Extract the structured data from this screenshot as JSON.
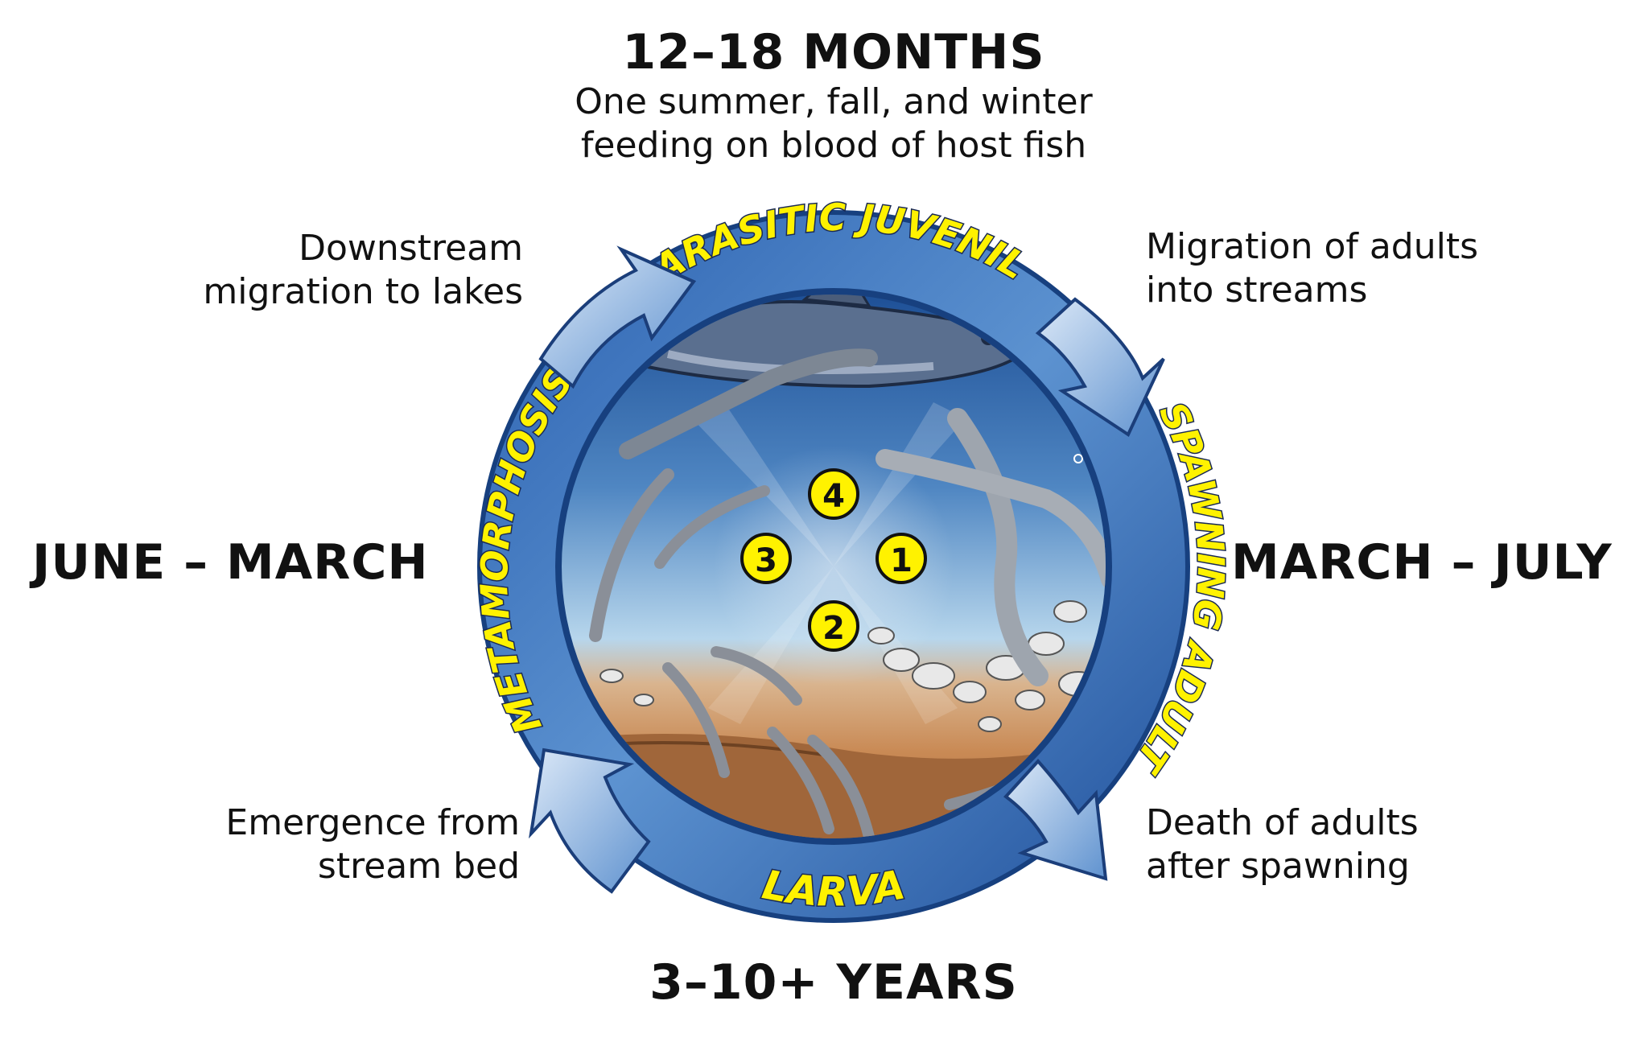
{
  "periods": {
    "top": "12–18 MONTHS",
    "bottom": "3–10+ YEARS",
    "left": "JUNE – MARCH",
    "right": "MARCH – JULY"
  },
  "top_caption": [
    "One summer, fall, and winter",
    "feeding on blood of host fish"
  ],
  "notes": {
    "top_left": [
      "Downstream",
      "migration to lakes"
    ],
    "top_right": [
      "Migration of adults",
      "into streams"
    ],
    "bottom_left": [
      "Emergence from",
      "stream bed"
    ],
    "bottom_right": [
      "Death of adults",
      "after spawning"
    ]
  },
  "stages": {
    "top": "PARASITIC JUVENILE",
    "right": "SPAWNING ADULT",
    "bottom": "LARVA",
    "left": "METAMORPHOSIS"
  },
  "stage_numbers": [
    "1",
    "2",
    "3",
    "4"
  ],
  "colors": {
    "ring_dark": "#1f4f9a",
    "ring_light": "#6fa2d8",
    "label_yellow": "#fff200",
    "water_top": "#1d4f96",
    "water_mid": "#9cc6e4",
    "sand": "#c98a55",
    "mud": "#a0663a",
    "arrow_light": "#dbe8f7",
    "arrow_dark": "#5f92cf"
  }
}
